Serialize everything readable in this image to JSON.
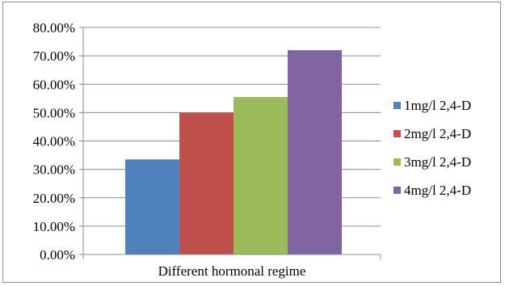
{
  "chart_data": {
    "type": "bar",
    "title": "",
    "xlabel": "Different hormonal regime",
    "ylabel": "",
    "categories": [
      "Different hormonal regime"
    ],
    "series": [
      {
        "name": "1mg/l 2,4-D",
        "values": [
          33.5
        ],
        "color": "#4f81bd"
      },
      {
        "name": "2mg/l 2,4-D",
        "values": [
          50.0
        ],
        "color": "#c0504d"
      },
      {
        "name": "3mg/l 2,4-D",
        "values": [
          55.5
        ],
        "color": "#9bbb59"
      },
      {
        "name": "4mg/l 2,4-D",
        "values": [
          72.0
        ],
        "color": "#8064a2"
      }
    ],
    "yticks": [
      "0.00%",
      "10.00%",
      "20.00%",
      "30.00%",
      "40.00%",
      "50.00%",
      "60.00%",
      "70.00%",
      "80.00%"
    ],
    "ylim": [
      0,
      80
    ],
    "grid": true,
    "legend_position": "right"
  }
}
